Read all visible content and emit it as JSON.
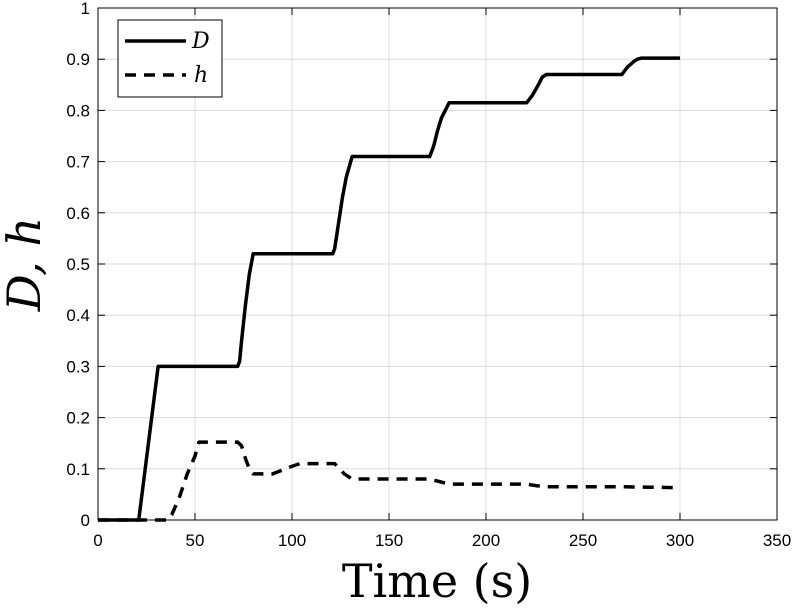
{
  "chart_data": {
    "type": "line",
    "xlabel": "Time (s)",
    "ylabel": "D, h",
    "xlim": [
      0,
      350
    ],
    "ylim": [
      0,
      1
    ],
    "xticks": [
      "0",
      "50",
      "100",
      "150",
      "200",
      "250",
      "300",
      "350"
    ],
    "yticks": [
      "0",
      "0.1",
      "0.2",
      "0.3",
      "0.4",
      "0.5",
      "0.6",
      "0.7",
      "0.8",
      "0.9",
      "1"
    ],
    "grid": true,
    "legend_position": "top-left",
    "series": [
      {
        "name": "D",
        "style": "solid",
        "color": "#000000",
        "x": [
          0,
          21,
          31,
          72,
          73,
          74,
          76,
          78,
          80,
          121,
          122,
          124,
          126,
          128,
          131,
          171,
          173,
          175,
          177,
          179,
          181,
          221,
          224,
          227,
          229,
          231,
          270,
          273,
          276,
          278,
          280,
          300
        ],
        "y": [
          0,
          0,
          0.3,
          0.3,
          0.31,
          0.35,
          0.42,
          0.48,
          0.52,
          0.52,
          0.53,
          0.58,
          0.63,
          0.67,
          0.71,
          0.71,
          0.73,
          0.76,
          0.785,
          0.8,
          0.815,
          0.815,
          0.83,
          0.85,
          0.865,
          0.87,
          0.87,
          0.885,
          0.895,
          0.9,
          0.902,
          0.902
        ]
      },
      {
        "name": "h",
        "style": "dashed",
        "color": "#000000",
        "x": [
          0,
          36,
          38,
          42,
          46,
          50,
          52,
          72,
          74,
          76,
          78,
          80,
          90,
          100,
          104,
          122,
          127,
          131,
          140,
          171,
          176,
          181,
          190,
          221,
          226,
          231,
          270,
          300
        ],
        "y": [
          0,
          0,
          0.01,
          0.045,
          0.09,
          0.125,
          0.152,
          0.152,
          0.145,
          0.12,
          0.1,
          0.09,
          0.09,
          0.105,
          0.11,
          0.11,
          0.09,
          0.08,
          0.08,
          0.08,
          0.075,
          0.07,
          0.07,
          0.07,
          0.067,
          0.065,
          0.065,
          0.063
        ]
      }
    ]
  }
}
